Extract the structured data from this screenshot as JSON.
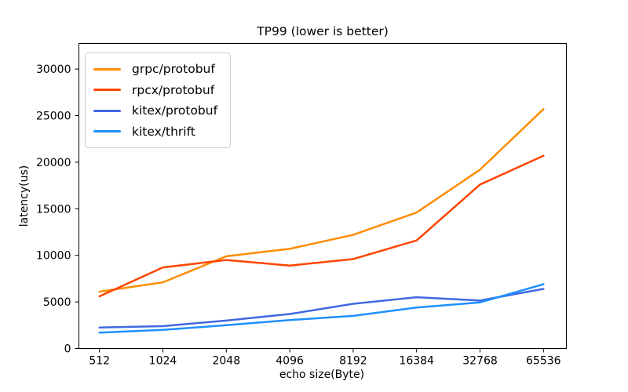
{
  "figure": {
    "background": "#ffffff",
    "spine_color": "#000000",
    "text_color": "#000000",
    "legend_border_color": "#cccccc"
  },
  "chart_data": {
    "type": "line",
    "title": "TP99 (lower is better)",
    "xlabel": "echo size(Byte)",
    "ylabel": "latency(us)",
    "categories": [
      "512",
      "1024",
      "2048",
      "4096",
      "8192",
      "16384",
      "32768",
      "65536"
    ],
    "series": [
      {
        "name": "grpc/protobuf",
        "color": "#FF8C00",
        "values": [
          6100,
          7100,
          9900,
          10700,
          12200,
          14600,
          19200,
          25700
        ]
      },
      {
        "name": "rpcx/protobuf",
        "color": "#FF4500",
        "values": [
          5600,
          8700,
          9500,
          8900,
          9600,
          11600,
          17600,
          20700
        ]
      },
      {
        "name": "kitex/protobuf",
        "color": "#4169E1",
        "values": [
          2250,
          2400,
          3000,
          3700,
          4800,
          5500,
          5150,
          6400
        ]
      },
      {
        "name": "kitex/thrift",
        "color": "#1E90FF",
        "values": [
          1700,
          2000,
          2500,
          3050,
          3500,
          4400,
          4950,
          6900
        ]
      }
    ],
    "yticks": [
      0,
      5000,
      10000,
      15000,
      20000,
      25000,
      30000
    ],
    "ylim": [
      0,
      32800
    ],
    "x_spacing": "equal (each tick doubles byte size)",
    "grid": false,
    "legend_position": "upper-left"
  }
}
